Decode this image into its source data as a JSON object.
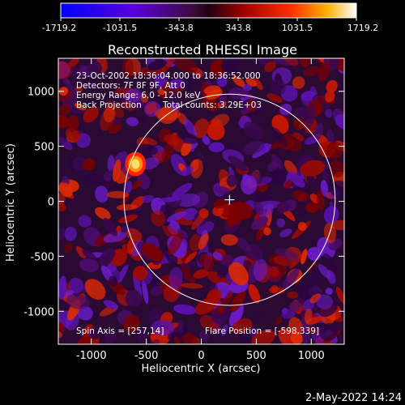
{
  "colorbar": {
    "ticks": [
      "-1719.2",
      "-1031.5",
      "-343.8",
      "343.8",
      "1031.5",
      "1719.2"
    ],
    "min": -1719.2,
    "max": 1719.2
  },
  "chart_data": {
    "type": "heatmap",
    "title": "Reconstructed RHESSI Image",
    "xlabel": "Heliocentric X (arcsec)",
    "ylabel": "Heliocentric Y (arcsec)",
    "xlim": [
      -1300,
      1300
    ],
    "ylim": [
      -1300,
      1300
    ],
    "xticks": [
      "-1000",
      "-500",
      "0",
      "500",
      "1000"
    ],
    "yticks": [
      "-1000",
      "-500",
      "0",
      "500",
      "1000"
    ],
    "xtick_values": [
      -1000,
      -500,
      0,
      500,
      1000
    ],
    "ytick_values": [
      -1000,
      -500,
      0,
      500,
      1000
    ],
    "annotations": [
      "23-Oct-2002 18:36:04.000 to 18:36:52.000",
      "Detectors: 7F 8F 9F, Att 0",
      "Energy Range: 6.0 - 12.0 keV",
      "Back Projection",
      "Total counts: 3.29E+03"
    ],
    "spin_axis": "Spin Axis = [257,14]",
    "flare_position": "Flare Position = [-598,339]",
    "solar_limb_radius": 960,
    "spin_axis_center": [
      257,
      14
    ],
    "bright_source": [
      -598,
      339
    ]
  },
  "footer": {
    "timestamp": "2-May-2022 14:24"
  },
  "colors": {
    "background": "#000000",
    "foreground": "#ffffff"
  }
}
